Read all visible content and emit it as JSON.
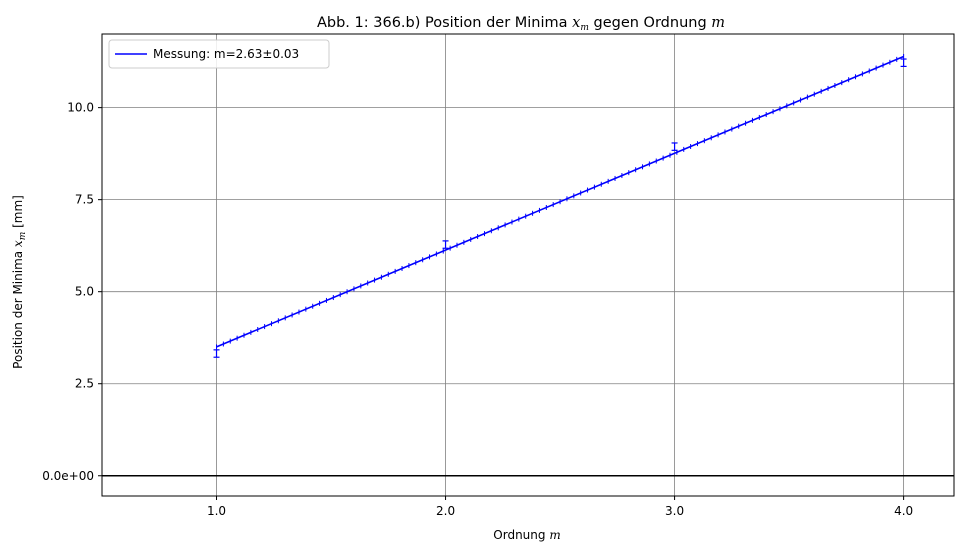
{
  "chart_data": {
    "type": "line",
    "title": {
      "prefix": "Abb. 1: 366.b) Position der Minima ",
      "var": "x",
      "sub": "m",
      "middle": " gegen Ordnung ",
      "var2": "m"
    },
    "xlabel": {
      "text": "Ordnung ",
      "var": "m"
    },
    "ylabel": {
      "text": "Position der Minima ",
      "var": "x",
      "sub": "m",
      "unit": " [mm]"
    },
    "xlim": [
      0.5,
      4.22
    ],
    "ylim": [
      -0.55,
      12.0
    ],
    "xticks": [
      1.0,
      2.0,
      3.0,
      4.0
    ],
    "xtick_labels": [
      "1.0",
      "2.0",
      "3.0",
      "4.0"
    ],
    "yticks": [
      0.0,
      2.5,
      5.0,
      7.5,
      10.0
    ],
    "ytick_labels": [
      "0.0e+00",
      "2.5",
      "5.0",
      "7.5",
      "10.0"
    ],
    "grid": true,
    "zero_line": true,
    "legend_position": "upper-left",
    "colors": {
      "series": "#0000ff",
      "grid": "#808080",
      "zero_line": "#000000"
    },
    "series": [
      {
        "name": "Messung: m=2.63±0.03",
        "fit": {
          "slope": 2.63,
          "intercept": 0.87,
          "x_range": [
            1.0,
            4.0
          ]
        },
        "points": [
          {
            "x": 1.0,
            "y": 3.32,
            "yerr": 0.1
          },
          {
            "x": 2.0,
            "y": 6.28,
            "yerr": 0.1
          },
          {
            "x": 3.0,
            "y": 8.94,
            "yerr": 0.1
          },
          {
            "x": 4.0,
            "y": 11.22,
            "yerr": 0.1
          }
        ]
      }
    ]
  }
}
